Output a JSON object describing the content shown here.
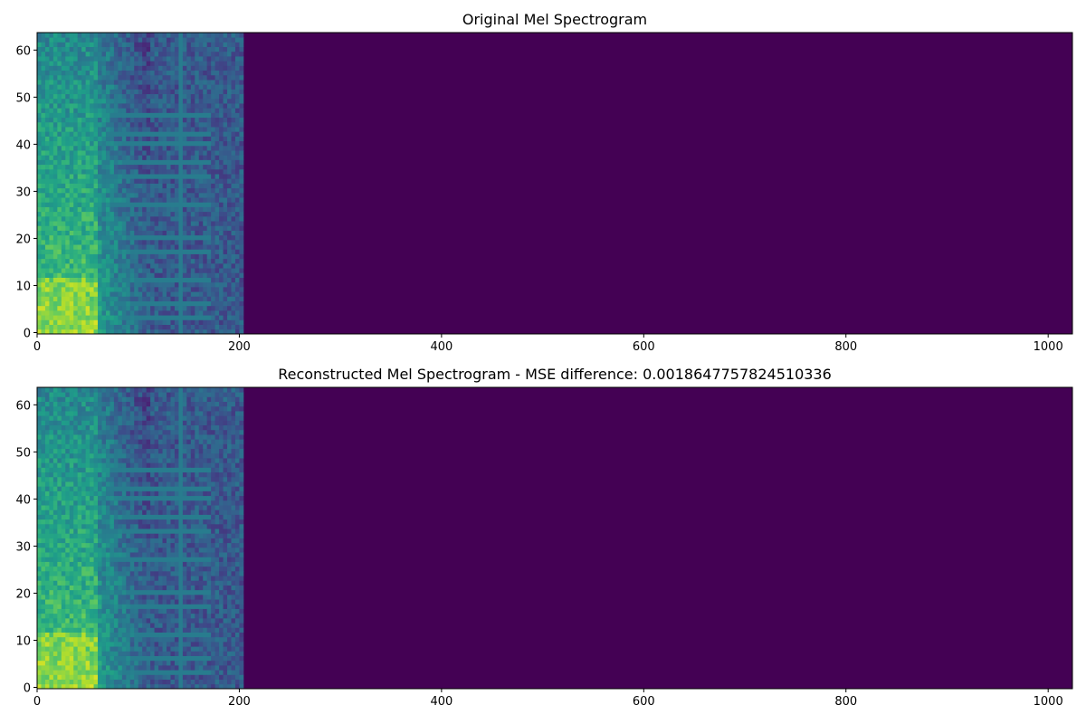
{
  "chart_data": [
    {
      "type": "heatmap",
      "title": "Original Mel Spectrogram",
      "xlabel": "",
      "ylabel": "",
      "xlim": [
        0,
        1024
      ],
      "ylim": [
        0,
        64
      ],
      "xticks": [
        "0",
        "200",
        "400",
        "600",
        "800",
        "1000"
      ],
      "yticks": [
        "0",
        "10",
        "20",
        "30",
        "40",
        "50",
        "60"
      ],
      "colormap": "viridis",
      "signal_end_frame": 204,
      "high_energy_end_frame": 60,
      "vertical_line_frame": 140,
      "horizontal_bands_mel": [
        3,
        6,
        11,
        17,
        20,
        27,
        33,
        36,
        40,
        42,
        46
      ],
      "grid": false
    },
    {
      "type": "heatmap",
      "title": "Reconstructed Mel Spectrogram - MSE difference: 0.0018647757824510336",
      "xlabel": "",
      "ylabel": "",
      "xlim": [
        0,
        1024
      ],
      "ylim": [
        0,
        64
      ],
      "xticks": [
        "0",
        "200",
        "400",
        "600",
        "800",
        "1000"
      ],
      "yticks": [
        "0",
        "10",
        "20",
        "30",
        "40",
        "50",
        "60"
      ],
      "colormap": "viridis",
      "signal_end_frame": 204,
      "high_energy_end_frame": 60,
      "vertical_line_frame": 140,
      "horizontal_bands_mel": [
        3,
        6,
        11,
        17,
        20,
        27,
        33,
        36,
        40,
        42,
        46
      ],
      "grid": false
    }
  ],
  "colors": {
    "background": "#440154",
    "low": "#472d7b",
    "mid": "#21918c",
    "high": "#fde725"
  }
}
